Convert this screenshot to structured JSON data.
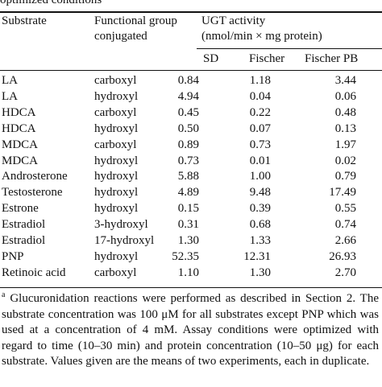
{
  "caption": "optimized conditions",
  "headers": {
    "substrate": "Substrate",
    "functional_group_line1": "Functional group",
    "functional_group_line2": "conjugated",
    "ugt_activity": "UGT activity",
    "units": "(nmol/min × mg protein)",
    "sd": "SD",
    "fischer": "Fischer",
    "fischer_pb": "Fischer PB"
  },
  "rows": [
    {
      "substrate": "LA",
      "group": "carboxyl",
      "sd": "0.84",
      "fischer": "1.18",
      "fischer_pb": "3.44"
    },
    {
      "substrate": "LA",
      "group": "hydroxyl",
      "sd": "4.94",
      "fischer": "0.04",
      "fischer_pb": "0.06"
    },
    {
      "substrate": "HDCA",
      "group": "carboxyl",
      "sd": "0.45",
      "fischer": "0.22",
      "fischer_pb": "0.48"
    },
    {
      "substrate": "HDCA",
      "group": "hydroxyl",
      "sd": "0.50",
      "fischer": "0.07",
      "fischer_pb": "0.13"
    },
    {
      "substrate": "MDCA",
      "group": "carboxyl",
      "sd": "0.89",
      "fischer": "0.73",
      "fischer_pb": "1.97"
    },
    {
      "substrate": "MDCA",
      "group": "hydroxyl",
      "sd": "0.73",
      "fischer": "0.01",
      "fischer_pb": "0.02"
    },
    {
      "substrate": "Androsterone",
      "group": "hydroxyl",
      "sd": "5.88",
      "fischer": "1.00",
      "fischer_pb": "0.79"
    },
    {
      "substrate": "Testosterone",
      "group": "hydroxyl",
      "sd": "4.89",
      "fischer": "9.48",
      "fischer_pb": "17.49"
    },
    {
      "substrate": "Estrone",
      "group": "hydroxyl",
      "sd": "0.15",
      "fischer": "0.39",
      "fischer_pb": "0.55"
    },
    {
      "substrate": "Estradiol",
      "group": "3-hydroxyl",
      "sd": "0.31",
      "fischer": "0.68",
      "fischer_pb": "0.74"
    },
    {
      "substrate": "Estradiol",
      "group": "17-hydroxyl",
      "sd": "1.30",
      "fischer": "1.33",
      "fischer_pb": "2.66"
    },
    {
      "substrate": "PNP",
      "group": "hydroxyl",
      "sd": "52.35",
      "fischer": "12.31",
      "fischer_pb": "26.93"
    },
    {
      "substrate": "Retinoic acid",
      "group": "carboxyl",
      "sd": "1.10",
      "fischer": "1.30",
      "fischer_pb": "2.70"
    }
  ],
  "footnote": {
    "mark": "a",
    "text": "Glucuronidation reactions were performed as described in Section 2. The substrate concentration was 100 μM for all substrates except PNP which was used at a concentration of 4 mM. Assay conditions were optimized with regard to time (10–30 min) and protein concentration (10–50 μg) for each substrate. Values given are the means of two experiments, each in duplicate."
  }
}
